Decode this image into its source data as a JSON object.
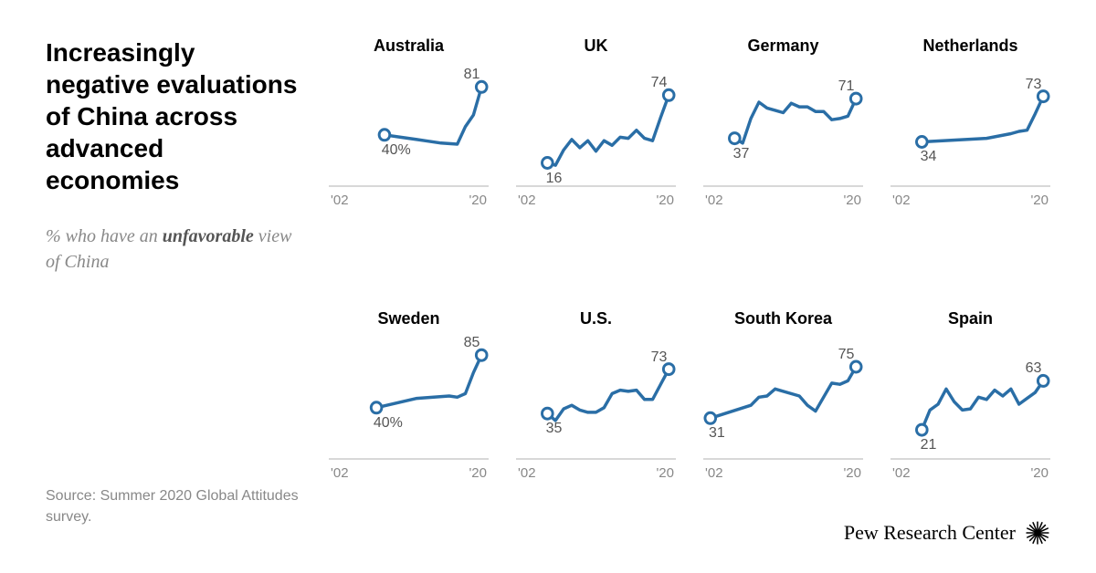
{
  "title": "Increasingly negative evaluations of China across advanced economies",
  "subtitle_pre": "% who have an ",
  "subtitle_em": "unfavorable",
  "subtitle_post": " view of China",
  "source": "Source: Summer 2020 Global Attitudes survey.",
  "brand": "Pew Research Center",
  "chart_style": {
    "line_color": "#2a6ea6",
    "line_width": 3.5,
    "marker_fill": "#ffffff",
    "marker_stroke": "#2a6ea6",
    "marker_stroke_width": 3,
    "marker_radius": 6,
    "axis_color": "#cccccc",
    "axis_label_color": "#888888",
    "value_label_color": "#555555",
    "title_color": "#000000",
    "ylim": [
      0,
      100
    ],
    "xlim": [
      2002,
      2020
    ]
  },
  "x_axis": {
    "start_label": "'02",
    "end_label": "'20"
  },
  "panels": [
    {
      "name": "Australia",
      "start_label": "40%",
      "end_label": "81",
      "series": [
        {
          "x": 2008,
          "y": 40
        },
        {
          "x": 2010,
          "y": 38
        },
        {
          "x": 2012,
          "y": 36
        },
        {
          "x": 2013,
          "y": 35
        },
        {
          "x": 2015,
          "y": 33
        },
        {
          "x": 2017,
          "y": 32
        },
        {
          "x": 2018,
          "y": 47
        },
        {
          "x": 2019,
          "y": 57
        },
        {
          "x": 2020,
          "y": 81
        }
      ]
    },
    {
      "name": "UK",
      "start_label": "16",
      "end_label": "74",
      "series": [
        {
          "x": 2005,
          "y": 16
        },
        {
          "x": 2006,
          "y": 14
        },
        {
          "x": 2007,
          "y": 27
        },
        {
          "x": 2008,
          "y": 36
        },
        {
          "x": 2009,
          "y": 29
        },
        {
          "x": 2010,
          "y": 35
        },
        {
          "x": 2011,
          "y": 26
        },
        {
          "x": 2012,
          "y": 35
        },
        {
          "x": 2013,
          "y": 31
        },
        {
          "x": 2014,
          "y": 38
        },
        {
          "x": 2015,
          "y": 37
        },
        {
          "x": 2016,
          "y": 44
        },
        {
          "x": 2017,
          "y": 37
        },
        {
          "x": 2018,
          "y": 35
        },
        {
          "x": 2019,
          "y": 55
        },
        {
          "x": 2020,
          "y": 74
        }
      ]
    },
    {
      "name": "Germany",
      "start_label": "37",
      "end_label": "71",
      "series": [
        {
          "x": 2005,
          "y": 37
        },
        {
          "x": 2006,
          "y": 33
        },
        {
          "x": 2007,
          "y": 54
        },
        {
          "x": 2008,
          "y": 68
        },
        {
          "x": 2009,
          "y": 63
        },
        {
          "x": 2010,
          "y": 61
        },
        {
          "x": 2011,
          "y": 59
        },
        {
          "x": 2012,
          "y": 67
        },
        {
          "x": 2013,
          "y": 64
        },
        {
          "x": 2014,
          "y": 64
        },
        {
          "x": 2015,
          "y": 60
        },
        {
          "x": 2016,
          "y": 60
        },
        {
          "x": 2017,
          "y": 53
        },
        {
          "x": 2018,
          "y": 54
        },
        {
          "x": 2019,
          "y": 56
        },
        {
          "x": 2020,
          "y": 71
        }
      ]
    },
    {
      "name": "Netherlands",
      "start_label": "34",
      "end_label": "73",
      "series": [
        {
          "x": 2005,
          "y": 34
        },
        {
          "x": 2013,
          "y": 37
        },
        {
          "x": 2016,
          "y": 41
        },
        {
          "x": 2017,
          "y": 43
        },
        {
          "x": 2018,
          "y": 44
        },
        {
          "x": 2019,
          "y": 58
        },
        {
          "x": 2020,
          "y": 73
        }
      ]
    },
    {
      "name": "Sweden",
      "start_label": "40%",
      "end_label": "85",
      "series": [
        {
          "x": 2007,
          "y": 40
        },
        {
          "x": 2012,
          "y": 48
        },
        {
          "x": 2016,
          "y": 50
        },
        {
          "x": 2017,
          "y": 49
        },
        {
          "x": 2018,
          "y": 52
        },
        {
          "x": 2019,
          "y": 70
        },
        {
          "x": 2020,
          "y": 85
        }
      ]
    },
    {
      "name": "U.S.",
      "start_label": "35",
      "end_label": "73",
      "series": [
        {
          "x": 2005,
          "y": 35
        },
        {
          "x": 2006,
          "y": 29
        },
        {
          "x": 2007,
          "y": 39
        },
        {
          "x": 2008,
          "y": 42
        },
        {
          "x": 2009,
          "y": 38
        },
        {
          "x": 2010,
          "y": 36
        },
        {
          "x": 2011,
          "y": 36
        },
        {
          "x": 2012,
          "y": 40
        },
        {
          "x": 2013,
          "y": 52
        },
        {
          "x": 2014,
          "y": 55
        },
        {
          "x": 2015,
          "y": 54
        },
        {
          "x": 2016,
          "y": 55
        },
        {
          "x": 2017,
          "y": 47
        },
        {
          "x": 2018,
          "y": 47
        },
        {
          "x": 2019,
          "y": 60
        },
        {
          "x": 2020,
          "y": 73
        }
      ]
    },
    {
      "name": "South Korea",
      "start_label": "31",
      "end_label": "75",
      "series": [
        {
          "x": 2002,
          "y": 31
        },
        {
          "x": 2007,
          "y": 42
        },
        {
          "x": 2008,
          "y": 49
        },
        {
          "x": 2009,
          "y": 50
        },
        {
          "x": 2010,
          "y": 56
        },
        {
          "x": 2013,
          "y": 50
        },
        {
          "x": 2014,
          "y": 42
        },
        {
          "x": 2015,
          "y": 37
        },
        {
          "x": 2017,
          "y": 61
        },
        {
          "x": 2018,
          "y": 60
        },
        {
          "x": 2019,
          "y": 63
        },
        {
          "x": 2020,
          "y": 75
        }
      ]
    },
    {
      "name": "Spain",
      "start_label": "21",
      "end_label": "63",
      "series": [
        {
          "x": 2005,
          "y": 21
        },
        {
          "x": 2006,
          "y": 38
        },
        {
          "x": 2007,
          "y": 43
        },
        {
          "x": 2008,
          "y": 56
        },
        {
          "x": 2009,
          "y": 45
        },
        {
          "x": 2010,
          "y": 38
        },
        {
          "x": 2011,
          "y": 39
        },
        {
          "x": 2012,
          "y": 49
        },
        {
          "x": 2013,
          "y": 47
        },
        {
          "x": 2014,
          "y": 55
        },
        {
          "x": 2015,
          "y": 50
        },
        {
          "x": 2016,
          "y": 56
        },
        {
          "x": 2017,
          "y": 43
        },
        {
          "x": 2018,
          "y": 48
        },
        {
          "x": 2019,
          "y": 53
        },
        {
          "x": 2020,
          "y": 63
        }
      ]
    }
  ]
}
